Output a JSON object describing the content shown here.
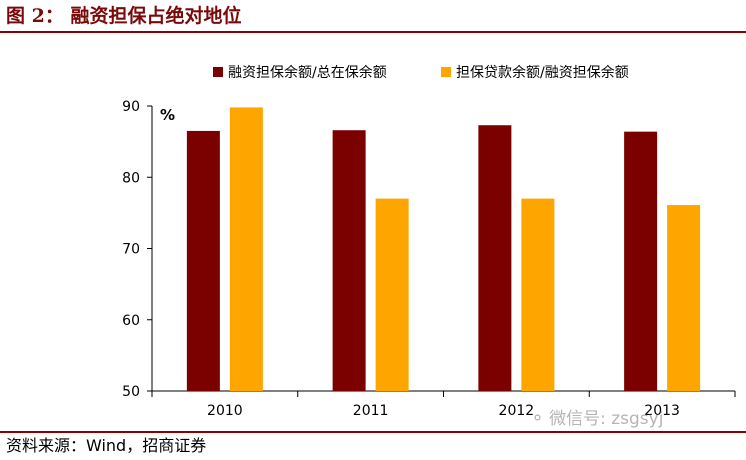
{
  "figure": {
    "title": "图 2：  融资担保占绝对地位",
    "source": "资料来源：Wind，招商证券",
    "watermark": "微信号: zsgsyj",
    "watermark_icon": "wechat-icon"
  },
  "colors": {
    "series1": "#7b0000",
    "series2": "#ffa500",
    "rule": "#8b0000",
    "title": "#7a0a0a"
  },
  "chart_data": {
    "type": "bar",
    "title": "融资担保占绝对地位",
    "categories": [
      "2010",
      "2011",
      "2012",
      "2013"
    ],
    "series": [
      {
        "name": "融资担保余额/总在保余额",
        "values": [
          86.5,
          86.6,
          87.3,
          86.4
        ]
      },
      {
        "name": "担保贷款余额/融资担保余额",
        "values": [
          89.8,
          77.0,
          77.0,
          76.1
        ]
      }
    ],
    "ylim": [
      50,
      90
    ],
    "yticks": [
      50,
      60,
      70,
      80,
      90
    ],
    "ylabel": "%",
    "xlabel": "",
    "legend_position": "top",
    "grid": false
  }
}
